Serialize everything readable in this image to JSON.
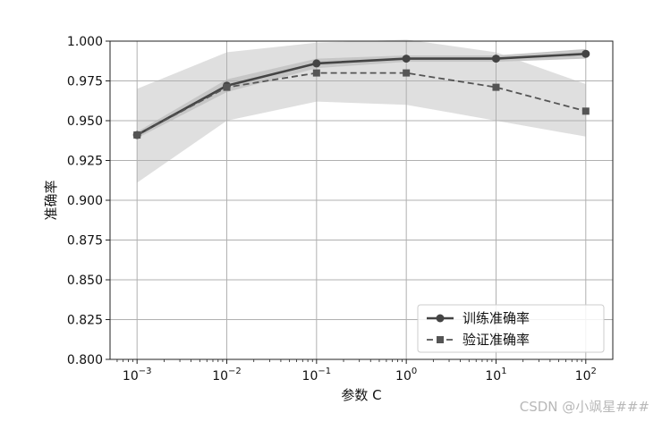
{
  "chart_data": {
    "type": "line",
    "x": [
      0.001,
      0.01,
      0.1,
      1,
      10,
      100
    ],
    "x_tick_labels": [
      {
        "base": "10",
        "exp": "−3"
      },
      {
        "base": "10",
        "exp": "−2"
      },
      {
        "base": "10",
        "exp": "−1"
      },
      {
        "base": "10",
        "exp": "0"
      },
      {
        "base": "10",
        "exp": "1"
      },
      {
        "base": "10",
        "exp": "2"
      }
    ],
    "y_ticks": [
      "0.800",
      "0.825",
      "0.850",
      "0.875",
      "0.900",
      "0.925",
      "0.950",
      "0.975",
      "1.000"
    ],
    "xlabel": "参数 C",
    "ylabel": "准确率",
    "xscale": "log",
    "xlim": [
      0.0005,
      200
    ],
    "ylim": [
      0.8,
      1.0
    ],
    "grid": true,
    "legend_position": "bottom-right",
    "series": [
      {
        "name": "训练准确率",
        "values": [
          0.941,
          0.972,
          0.986,
          0.989,
          0.989,
          0.992
        ],
        "band_upper": [
          0.943,
          0.976,
          0.989,
          0.991,
          0.991,
          0.995
        ],
        "band_lower": [
          0.939,
          0.968,
          0.983,
          0.987,
          0.987,
          0.989
        ],
        "color": "#444444",
        "line_style": "solid",
        "marker": "circle"
      },
      {
        "name": "验证准确率",
        "values": [
          0.941,
          0.971,
          0.98,
          0.98,
          0.971,
          0.956
        ],
        "band_upper": [
          0.97,
          0.993,
          0.999,
          1.001,
          0.993,
          0.973
        ],
        "band_lower": [
          0.911,
          0.95,
          0.962,
          0.96,
          0.95,
          0.94
        ],
        "color": "#555555",
        "line_style": "dashed",
        "marker": "square"
      }
    ]
  },
  "watermark": "CSDN @小飒星###"
}
